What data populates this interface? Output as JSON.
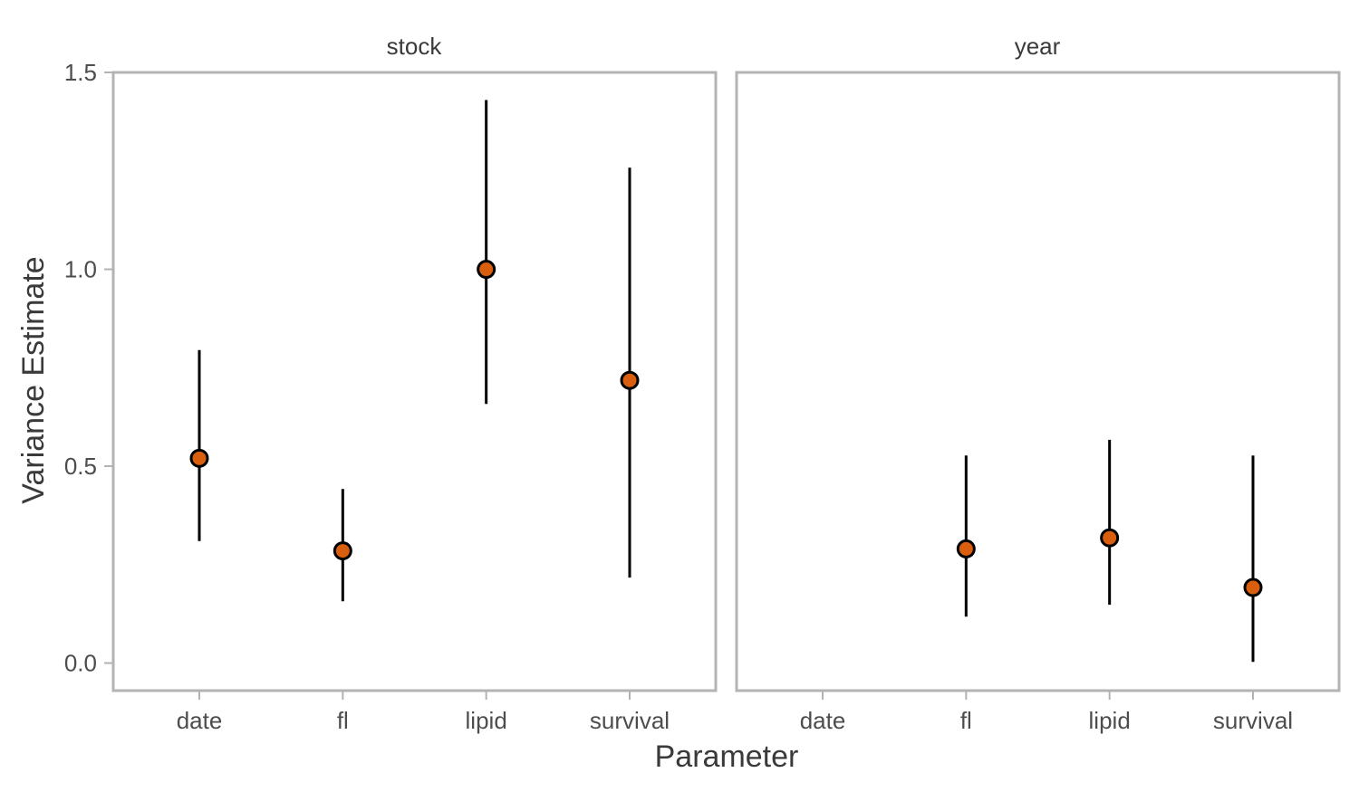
{
  "chart_data": {
    "type": "scatter",
    "xlabel": "Parameter",
    "ylabel": "Variance Estimate",
    "ylim": [
      -0.07,
      1.5
    ],
    "yticks": [
      0.0,
      0.5,
      1.0,
      1.5
    ],
    "ytick_labels": [
      "0.0",
      "0.5",
      "1.0",
      "1.5"
    ],
    "categories": [
      "date",
      "fl",
      "lipid",
      "survival"
    ],
    "grid": false,
    "point_color": "#D95F0E",
    "facets": [
      {
        "title": "stock",
        "points": [
          {
            "x": "date",
            "y": 0.52,
            "lower": 0.31,
            "upper": 0.795
          },
          {
            "x": "fl",
            "y": 0.285,
            "lower": 0.157,
            "upper": 0.442
          },
          {
            "x": "lipid",
            "y": 1.0,
            "lower": 0.658,
            "upper": 1.43
          },
          {
            "x": "survival",
            "y": 0.718,
            "lower": 0.217,
            "upper": 1.258
          }
        ]
      },
      {
        "title": "year",
        "points": [
          {
            "x": "fl",
            "y": 0.29,
            "lower": 0.118,
            "upper": 0.527
          },
          {
            "x": "lipid",
            "y": 0.318,
            "lower": 0.148,
            "upper": 0.567
          },
          {
            "x": "survival",
            "y": 0.192,
            "lower": 0.003,
            "upper": 0.527
          }
        ]
      }
    ]
  }
}
